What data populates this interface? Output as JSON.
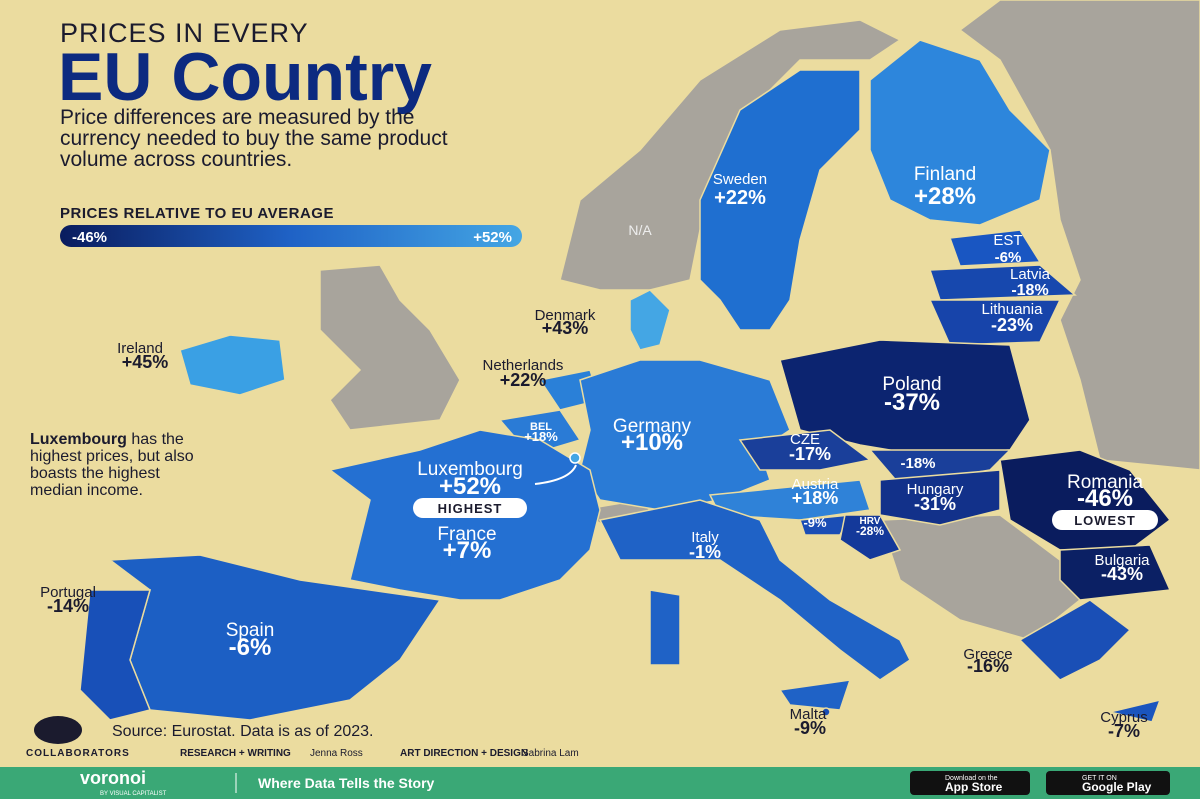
{
  "header": {
    "kicker": "PRICES IN EVERY",
    "title": "EU Country",
    "subtitle": [
      "Price differences are measured by the",
      "currency needed to buy the same product",
      "volume across countries."
    ]
  },
  "legend": {
    "title": "PRICES RELATIVE TO EU AVERAGE",
    "min": "-46%",
    "max": "+52%"
  },
  "na_label": "N/A",
  "countries": [
    {
      "name": "Sweden",
      "value": "+22%"
    },
    {
      "name": "Finland",
      "value": "+28%"
    },
    {
      "name": "EST",
      "value": "-6%"
    },
    {
      "name": "Latvia",
      "value": "-18%"
    },
    {
      "name": "Lithuania",
      "value": "-23%"
    },
    {
      "name": "Denmark",
      "value": "+43%"
    },
    {
      "name": "Ireland",
      "value": "+45%"
    },
    {
      "name": "Netherlands",
      "value": "+22%"
    },
    {
      "name": "BEL",
      "value": "+18%"
    },
    {
      "name": "Germany",
      "value": "+10%"
    },
    {
      "name": "Poland",
      "value": "-37%"
    },
    {
      "name": "CZE",
      "value": "-17%"
    },
    {
      "value": "-18%"
    },
    {
      "name": "Luxembourg",
      "value": "+52%",
      "tag": "HIGHEST"
    },
    {
      "name": "Austria",
      "value": "+18%"
    },
    {
      "name": "Hungary",
      "value": "-31%"
    },
    {
      "name": "Romania",
      "value": "-46%",
      "tag": "LOWEST"
    },
    {
      "name": "France",
      "value": "+7%"
    },
    {
      "name": "Italy",
      "value": "-1%"
    },
    {
      "value": "-9%"
    },
    {
      "name": "HRV",
      "value": "-28%"
    },
    {
      "name": "Bulgaria",
      "value": "-43%"
    },
    {
      "name": "Portugal",
      "value": "-14%"
    },
    {
      "name": "Spain",
      "value": "-6%"
    },
    {
      "name": "Greece",
      "value": "-16%"
    },
    {
      "name": "Malta",
      "value": "-9%"
    },
    {
      "name": "Cyprus",
      "value": "-7%"
    }
  ],
  "annotation": {
    "bold": "Luxembourg",
    "lines": [
      " has the",
      "highest prices, but also",
      "boasts the highest",
      "median income."
    ]
  },
  "source": "Source: Eurostat. Data is as of 2023.",
  "credits": {
    "label": "COLLABORATORS",
    "role1": "RESEARCH + WRITING",
    "name1": "Jenna Ross",
    "role2": "ART DIRECTION + DESIGN",
    "name2": "Sabrina Lam"
  },
  "footer": {
    "brand": "voronoi",
    "brand_sub": "BY VISUAL CAPITALIST",
    "tagline": "Where Data Tells the Story",
    "apple_small": "Download on the",
    "apple": "App Store",
    "google_small": "GET IT ON",
    "google": "Google Play"
  }
}
